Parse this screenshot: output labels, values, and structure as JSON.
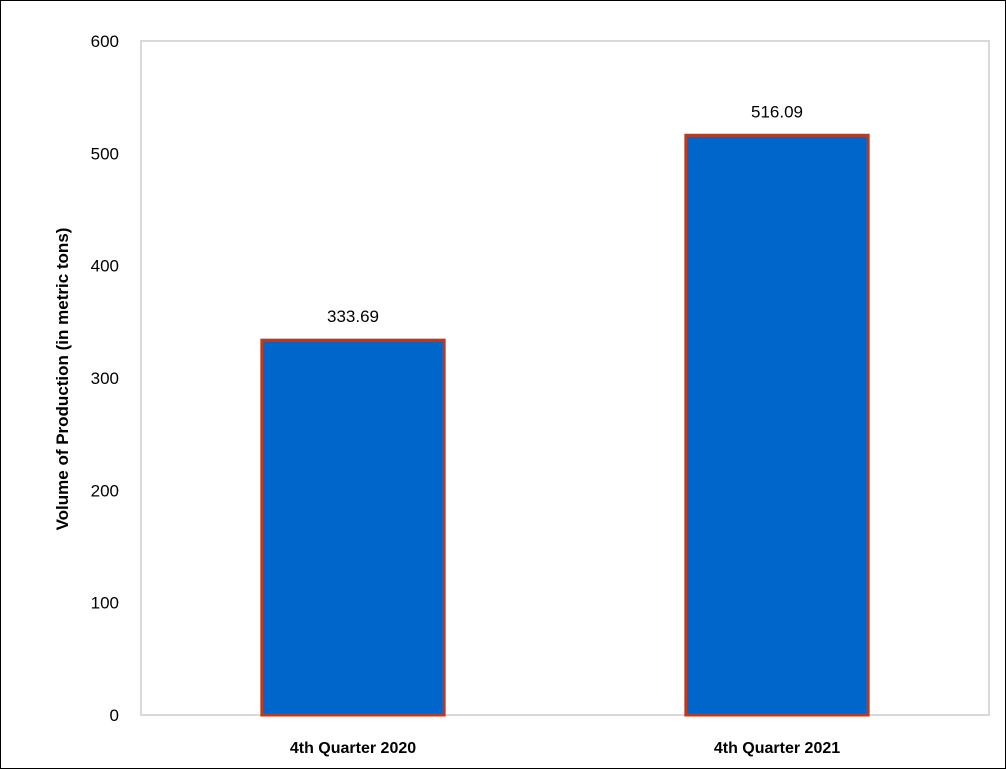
{
  "chart_data": {
    "type": "bar",
    "title": "",
    "xlabel": "",
    "ylabel": "Volume of Production (in metric tons)",
    "categories": [
      "4th Quarter 2020",
      "4th Quarter 2021"
    ],
    "values": [
      333.69,
      516.09
    ],
    "value_labels": [
      "333.69",
      "516.09"
    ],
    "ylim": [
      0,
      600
    ],
    "yticks": [
      0,
      100,
      200,
      300,
      400,
      500,
      600
    ],
    "grid": false,
    "legend": "none",
    "colors": {
      "bar_fill": "#0066CC",
      "bar_border": "#C0391B",
      "plot_border": "#D9D9D9",
      "text": "#000000"
    }
  }
}
